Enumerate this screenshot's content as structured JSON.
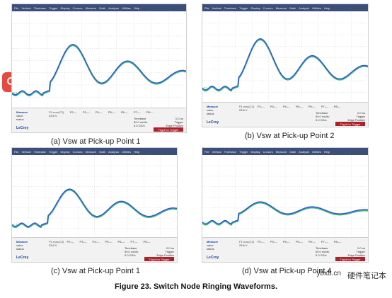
{
  "menu_items": [
    "File",
    "Vertical",
    "Timebase",
    "Trigger",
    "Display",
    "Cursors",
    "Measure",
    "Math",
    "Analysis",
    "Utilities",
    "Help"
  ],
  "status": {
    "measure_title": "Measure",
    "measure_rows": [
      "value",
      "status"
    ],
    "chan_label": "P1:max(C3)",
    "chan_value": "23.6 V",
    "markers": [
      "P2:---",
      "P3:---",
      "P4:---",
      "P5:---",
      "P6:---",
      "P7:---",
      "P8:---"
    ],
    "tb_rows": [
      [
        "Timebase",
        "0.0 ns"
      ],
      [
        "50.0 ns/div",
        "Trigger"
      ],
      [
        "5.0 GS/s",
        "Edge  Positive"
      ]
    ],
    "trigger_chip": "Trig'd for Trigger",
    "brand": "LeCroy"
  },
  "captions": {
    "a": "(a)  Vsw at Pick-up Point 1",
    "b": "(b)  Vsw at Pick-up Point 2",
    "c": "(c)  Vsw at Pick-up Point 1",
    "d": "(d)  Vsw at Pick-up Point 4"
  },
  "figure_caption": "Figure 23.    Switch Node Ringing Waveforms.",
  "watermark": {
    "url": "ybx8.cn",
    "main": "硬件笔记本"
  },
  "colors": {
    "trace_blue": "#3a4fd6",
    "trace_green": "#36b98a",
    "menubar": "#3b4f7a",
    "search_fab": "#e8493f"
  },
  "icons": {
    "search_fab": "search-icon"
  }
}
